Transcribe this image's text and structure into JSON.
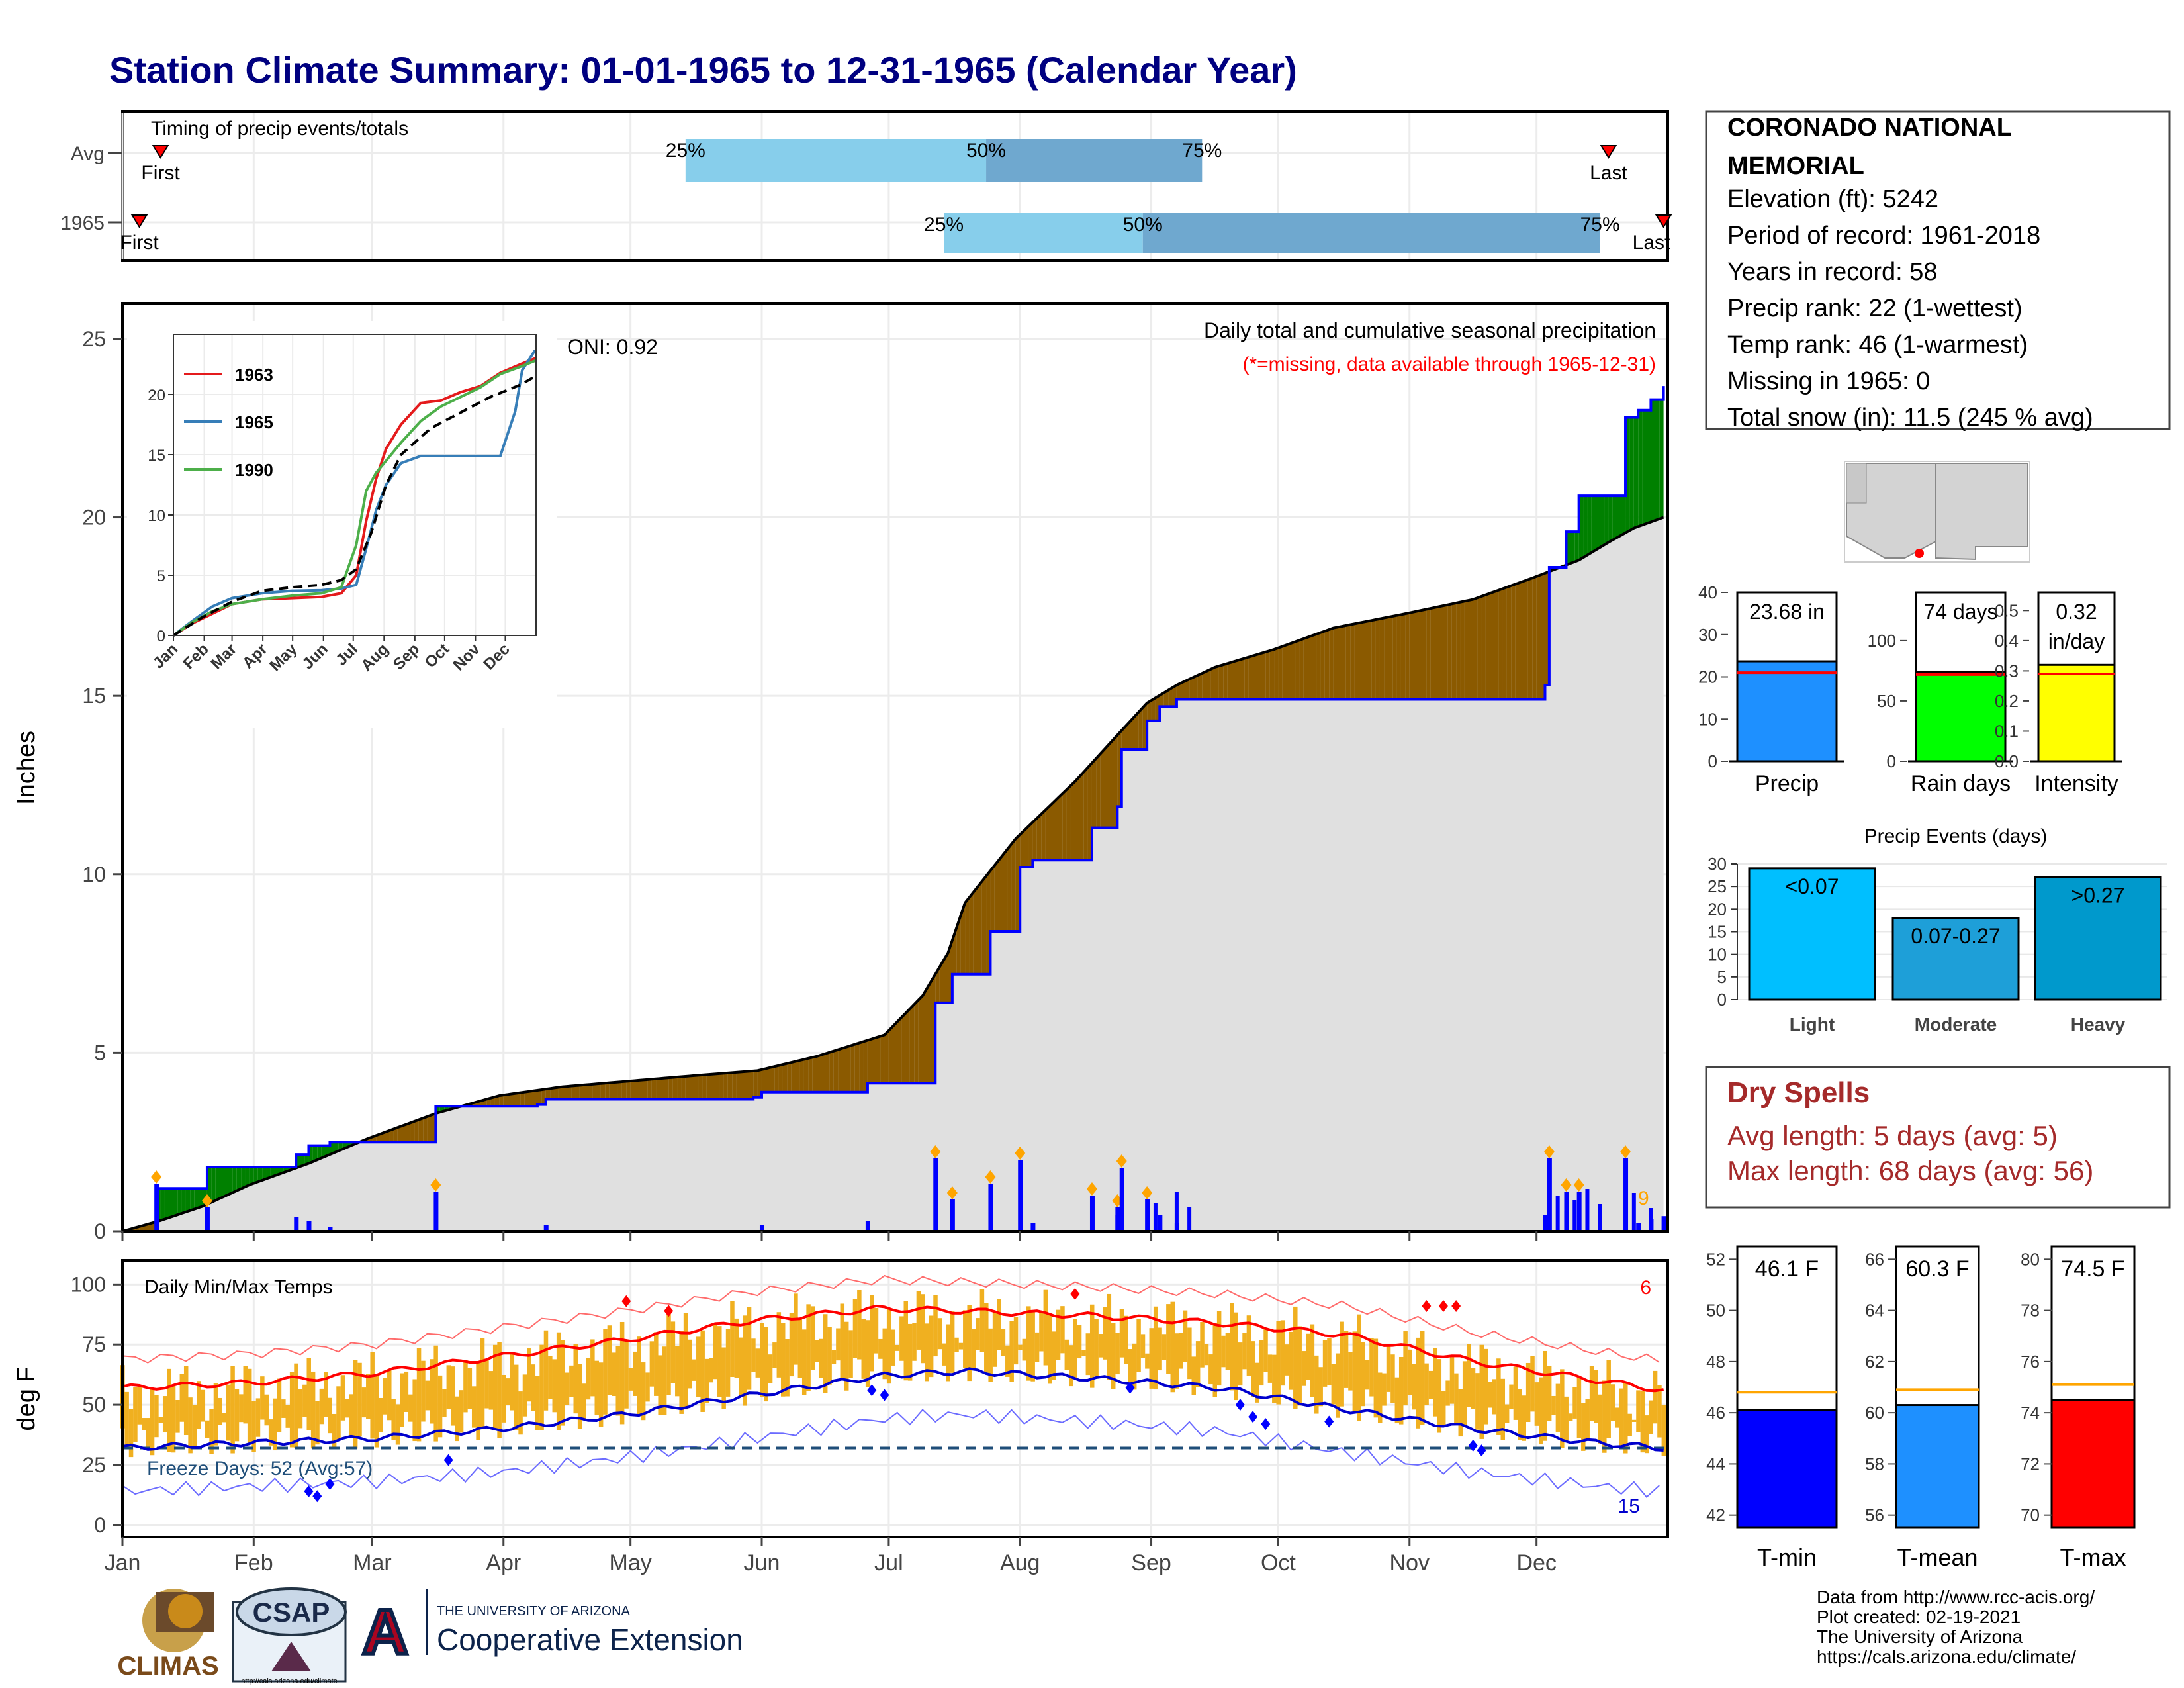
{
  "title": "Station Climate Summary: 01-01-1965 to 12-31-1965 (Calendar Year)",
  "colors": {
    "title": "#000080",
    "light_blue": "#87ceeb",
    "mid_blue": "#6fa8cf",
    "brown": "#8b5a00",
    "green": "#008000",
    "grey_fill": "#e0e0e0",
    "obs_line": "#0000ff",
    "tmax": "#ff0000",
    "tmin": "#0000cd",
    "bars_temp": "#f0b020",
    "orange": "#ffa500",
    "freeze": "#1f4e79"
  },
  "timing": {
    "label": "Timing of precip events/totals",
    "rows": [
      {
        "name": "Avg",
        "first": "First",
        "last": "Last",
        "p25": "25%",
        "p50": "50%",
        "p75": "75%",
        "first_doy": 10,
        "p25_doy": 134,
        "p50_doy": 205,
        "p75_doy": 256,
        "last_doy": 352
      },
      {
        "name": "1965",
        "first": "First",
        "last": "Last",
        "p25": "25%",
        "p50": "50%",
        "p75": "75%",
        "first_doy": 5,
        "p25_doy": 195,
        "p50_doy": 242,
        "p75_doy": 350,
        "last_doy": 365
      }
    ]
  },
  "precip": {
    "ylabel": "Inches",
    "title": "Daily total and cumulative seasonal precipitation",
    "subtitle": "(*=missing, data available through 1965-12-31)",
    "oni": "ONI: 0.92",
    "ylim": [
      0,
      26
    ],
    "yticks": [
      "0",
      "5",
      "10",
      "15",
      "20",
      "25"
    ],
    "month_labels": [
      "Jan",
      "Feb",
      "Mar",
      "Apr",
      "May",
      "Jun",
      "Jul",
      "Aug",
      "Sep",
      "Oct",
      "Nov",
      "Dec"
    ],
    "annotation_count": "9"
  },
  "inset": {
    "legend": [
      "1963",
      "1965",
      "1990"
    ],
    "legend_colors": [
      "#e41a1c",
      "#377eb8",
      "#4daf4a"
    ],
    "yticks": [
      "0",
      "5",
      "10",
      "15",
      "20"
    ],
    "xticks": [
      "Jan",
      "Feb",
      "Mar",
      "Apr",
      "May",
      "Jun",
      "Jul",
      "Aug",
      "Sep",
      "Oct",
      "Nov",
      "Dec"
    ]
  },
  "temps": {
    "ylabel": "deg F",
    "label": "Daily Min/Max Temps",
    "freeze_label": "Freeze Days: 52 (Avg:57)",
    "count_hot": "6",
    "count_cold": "15",
    "yticks": [
      "0",
      "25",
      "50",
      "75",
      "100"
    ],
    "ylim": [
      -5,
      110
    ]
  },
  "station": {
    "name_line1": "CORONADO NATIONAL",
    "name_line2": "MEMORIAL",
    "lines": [
      "Elevation (ft): 5242",
      "Period of record: 1961-2018",
      "Years in record: 58",
      "Precip rank: 22 (1-wettest)",
      "Temp rank: 46 (1-warmest)",
      "Missing in 1965: 0",
      "Total snow (in): 11.5 (245 % avg)"
    ]
  },
  "mini_bars": [
    {
      "label": "Precip",
      "value_text": "23.68 in",
      "value": 23.68,
      "avg": 21,
      "color": "#1e90ff",
      "ymax": 40,
      "yticks": [
        "0",
        "10",
        "20",
        "30",
        "40"
      ]
    },
    {
      "label": "Rain days",
      "value_text": "74 days",
      "value": 74,
      "avg": 72,
      "color": "#00ff00",
      "ymax": 140,
      "yticks": [
        "0",
        "50",
        "100"
      ]
    },
    {
      "label": "Intensity",
      "value_text": "0.32",
      "value_text2": "in/day",
      "value": 0.32,
      "avg": 0.29,
      "color": "#ffff00",
      "ymax": 0.56,
      "yticks": [
        "0.0",
        "0.1",
        "0.2",
        "0.3",
        "0.4",
        "0.5"
      ]
    }
  ],
  "precip_events": {
    "title": "Precip Events (days)",
    "categories": [
      "Light",
      "Moderate",
      "Heavy"
    ],
    "values": [
      29,
      18,
      27
    ],
    "value_labels": [
      "<0.07",
      "0.07-0.27",
      ">0.27"
    ],
    "colors": [
      "#00bfff",
      "#1e9fd8",
      "#0099cc"
    ],
    "yticks": [
      "0",
      "5",
      "10",
      "15",
      "20",
      "25",
      "30"
    ]
  },
  "dry_spells": {
    "title": "Dry Spells",
    "avg": "Avg length: 5 days (avg: 5)",
    "max": "Max length: 68 days (avg: 56)"
  },
  "temp_bars": [
    {
      "label": "T-min",
      "value_text": "46.1 F",
      "value": 46.1,
      "avg": 46.8,
      "color": "#0000ff",
      "ylim": [
        41.5,
        52.5
      ],
      "yticks": [
        "42",
        "44",
        "46",
        "48",
        "50",
        "52"
      ]
    },
    {
      "label": "T-mean",
      "value_text": "60.3 F",
      "value": 60.3,
      "avg": 60.9,
      "color": "#1e90ff",
      "ylim": [
        55.5,
        66.5
      ],
      "yticks": [
        "56",
        "58",
        "60",
        "62",
        "64",
        "66"
      ]
    },
    {
      "label": "T-max",
      "value_text": "74.5 F",
      "value": 74.5,
      "avg": 75.1,
      "color": "#ff0000",
      "ylim": [
        69.5,
        80.5
      ],
      "yticks": [
        "70",
        "72",
        "74",
        "76",
        "78",
        "80"
      ]
    }
  ],
  "footer": {
    "lines": [
      "Data from http://www.rcc-acis.org/",
      "Plot created: 02-19-2021",
      "The University of Arizona",
      "https://cals.arizona.edu/climate/"
    ],
    "climas": "CLIMAS",
    "csap": "CSAP",
    "csap_url": "http://cals.arizona.edu/climate",
    "ua_small": "THE UNIVERSITY OF ARIZONA",
    "ua_big": "Cooperative Extension"
  },
  "chart_data": [
    {
      "type": "area",
      "title": "Daily total and cumulative seasonal precipitation",
      "ylabel": "Inches",
      "ylim": [
        0,
        26
      ],
      "x_unit": "day of year 1965",
      "series": [
        {
          "name": "",
          "x": [
            1,
            10,
            20,
            31,
            45,
            59,
            75,
            90,
            105,
            120,
            135,
            151,
            165,
            181,
            190,
            196,
            200,
            212,
            226,
            236,
            243,
            250,
            259,
            273,
            287,
            304,
            320,
            334,
            345,
            352,
            358,
            365
          ],
          "values": [
            0,
            0.3,
            0.7,
            1.3,
            1.9,
            2.6,
            3.3,
            3.8,
            4.05,
            4.2,
            4.35,
            4.5,
            4.9,
            5.5,
            6.6,
            7.8,
            9.2,
            11.0,
            12.6,
            13.9,
            14.8,
            15.3,
            15.8,
            16.3,
            16.9,
            17.3,
            17.7,
            18.3,
            18.8,
            19.3,
            19.7,
            20.0
          ]
        },
        {
          "name": "",
          "x": [
            1,
            8,
            9,
            20,
            21,
            40,
            42,
            45,
            50,
            70,
            75,
            99,
            101,
            150,
            152,
            175,
            177,
            191,
            193,
            197,
            206,
            213,
            216,
            230,
            236,
            237,
            243,
            246,
            250,
            270,
            300,
            310,
            321,
            330,
            337,
            338,
            342,
            345,
            350,
            356,
            359,
            362,
            365
          ],
          "values": [
            0,
            0,
            1.2,
            1.2,
            1.8,
            1.8,
            2.15,
            2.4,
            2.5,
            2.5,
            3.5,
            3.55,
            3.7,
            3.75,
            3.9,
            3.9,
            4.15,
            4.15,
            6.4,
            7.2,
            8.4,
            10.2,
            10.4,
            11.3,
            11.9,
            13.5,
            14.3,
            14.7,
            14.9,
            14.9,
            14.9,
            14.9,
            14.9,
            14.9,
            15.3,
            18.6,
            19.6,
            20.6,
            20.6,
            22.8,
            23.0,
            23.3,
            23.68
          ]
        }
      ]
    },
    {
      "type": "line",
      "title": "",
      "ylim": [
        0,
        25
      ],
      "x_unit": "day of year",
      "series": [
        {
          "name": "1963",
          "x": [
            1,
            20,
            40,
            60,
            90,
            120,
            150,
            170,
            185,
            195,
            205,
            215,
            230,
            250,
            270,
            290,
            310,
            330,
            350,
            365
          ],
          "values": [
            0,
            1.0,
            1.8,
            2.6,
            3.0,
            3.1,
            3.2,
            3.5,
            5.0,
            9.5,
            13.0,
            15.5,
            17.5,
            19.3,
            19.5,
            20.2,
            20.7,
            21.8,
            22.5,
            23.0
          ]
        },
        {
          "name": "1965",
          "x": [
            1,
            20,
            40,
            60,
            90,
            120,
            150,
            170,
            185,
            195,
            205,
            215,
            230,
            250,
            270,
            290,
            310,
            330,
            345,
            352,
            365
          ],
          "values": [
            0,
            1.2,
            2.4,
            3.1,
            3.5,
            3.7,
            3.75,
            3.9,
            4.2,
            7.2,
            10.4,
            12.5,
            14.3,
            14.9,
            14.9,
            14.9,
            14.9,
            14.9,
            18.6,
            22.0,
            23.68
          ]
        },
        {
          "name": "1990",
          "x": [
            1,
            20,
            40,
            60,
            90,
            120,
            150,
            170,
            185,
            195,
            205,
            215,
            230,
            250,
            270,
            290,
            310,
            330,
            350,
            365
          ],
          "values": [
            0,
            1.1,
            2.0,
            2.6,
            3.0,
            3.3,
            3.5,
            4.0,
            7.5,
            12.0,
            13.5,
            14.5,
            16.0,
            17.8,
            19.0,
            19.8,
            20.6,
            21.7,
            22.3,
            22.8
          ]
        },
        {
          "name": "",
          "x": [
            1,
            30,
            60,
            90,
            120,
            150,
            170,
            185,
            200,
            215,
            230,
            260,
            290,
            320,
            350,
            365
          ],
          "values": [
            0,
            1.5,
            2.8,
            3.7,
            4.0,
            4.2,
            4.6,
            5.5,
            8.5,
            12.5,
            15.0,
            17.2,
            18.5,
            19.8,
            20.8,
            21.5
          ]
        }
      ]
    },
    {
      "type": "line",
      "title": "Daily Min/Max Temps",
      "ylabel": "deg F",
      "ylim": [
        -5,
        110
      ],
      "x_unit": "day of year 1965",
      "series": [
        {
          "name": "",
          "x": [
            1,
            30,
            60,
            90,
            120,
            150,
            180,
            200,
            230,
            260,
            290,
            320,
            350,
            365
          ],
          "values": [
            57,
            59,
            63,
            70,
            77,
            85,
            90,
            89,
            87,
            84,
            79,
            68,
            60,
            56
          ]
        },
        {
          "name": "",
          "x": [
            1,
            30,
            60,
            90,
            120,
            150,
            180,
            200,
            230,
            260,
            290,
            320,
            350,
            365
          ],
          "values": [
            32,
            34,
            36,
            40,
            46,
            54,
            62,
            64,
            61,
            57,
            48,
            40,
            34,
            32
          ]
        }
      ]
    },
    {
      "type": "bar",
      "title": "Precip Events (days)",
      "categories": [
        "Light",
        "Moderate",
        "Heavy"
      ],
      "values": [
        29,
        18,
        27
      ],
      "ylim": [
        0,
        30
      ]
    }
  ]
}
